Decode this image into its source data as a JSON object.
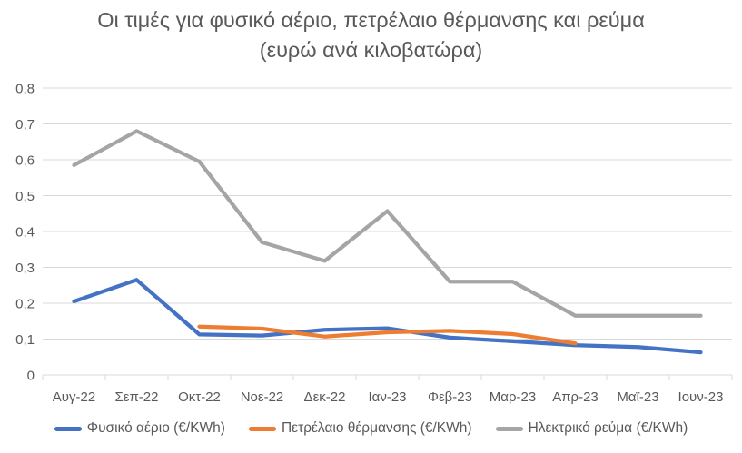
{
  "chart_data": {
    "type": "line",
    "title": "Οι τιμές για φυσικό αέριο, πετρέλαιο θέρμανσης και ρεύμα (ευρώ ανά κιλοβατώρα)",
    "categories": [
      "Αυγ-22",
      "Σεπ-22",
      "Οκτ-22",
      "Νοε-22",
      "Δεκ-22",
      "Ιαν-23",
      "Φεβ-23",
      "Μαρ-23",
      "Απρ-23",
      "Μαϊ-23",
      "Ιουν-23"
    ],
    "series": [
      {
        "id": "natural-gas",
        "name": "Φυσικό αέριο (€/KWh)",
        "color": "#4472C4",
        "values": [
          0.205,
          0.265,
          0.113,
          0.11,
          0.126,
          0.13,
          0.104,
          0.094,
          0.083,
          0.078,
          0.063
        ]
      },
      {
        "id": "heating-oil",
        "name": "Πετρέλαιο θέρμανσης (€/KWh)",
        "color": "#ED7D31",
        "values": [
          null,
          null,
          0.135,
          0.129,
          0.107,
          0.119,
          0.123,
          0.114,
          0.088,
          null,
          null
        ]
      },
      {
        "id": "electricity",
        "name": "Ηλεκτρικό ρεύμα (€/KWh)",
        "color": "#A5A5A5",
        "values": [
          0.585,
          0.68,
          0.595,
          0.37,
          0.318,
          0.457,
          0.26,
          0.26,
          0.165,
          0.165,
          0.165
        ]
      }
    ],
    "ylim": [
      0,
      0.8
    ],
    "y_tick_step": 0.1,
    "y_tick_labels": [
      "0",
      "0,1",
      "0,2",
      "0,3",
      "0,4",
      "0,5",
      "0,6",
      "0,7",
      "0,8"
    ],
    "xlabel": "",
    "ylabel": "",
    "grid": true,
    "legend_position": "bottom",
    "decimal_separator": ","
  },
  "colors": {
    "text": "#595959",
    "grid": "#D9D9D9",
    "axis": "#D9D9D9",
    "background": "#FFFFFF"
  }
}
